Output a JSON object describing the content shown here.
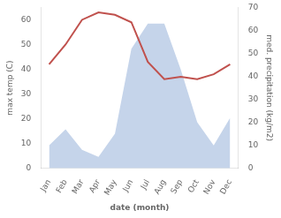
{
  "chart_data": {
    "type": "line",
    "categories": [
      "Jan",
      "Feb",
      "Mar",
      "Apr",
      "May",
      "Jun",
      "Jul",
      "Aug",
      "Sep",
      "Oct",
      "Nov",
      "Dec"
    ],
    "xlabel": "date (month)",
    "ylabel": "max temp (C)",
    "y2label": "med. precipitation (kg/m2)",
    "series": [
      {
        "type": "area",
        "axis": "y2",
        "color": "#c5d4ea",
        "values": [
          10,
          17,
          8,
          5,
          15,
          52,
          63,
          63,
          43,
          20,
          10,
          22
        ]
      },
      {
        "type": "line",
        "color": "#c0514d",
        "values": [
          42,
          50,
          60,
          63,
          62,
          59,
          43,
          36,
          37,
          36,
          38,
          42
        ]
      }
    ],
    "ylim": [
      0,
      65
    ],
    "yticks": [
      0,
      10,
      20,
      30,
      40,
      50,
      60
    ],
    "y2lim": [
      0,
      70
    ],
    "y2ticks": [
      0,
      10,
      20,
      30,
      40,
      50,
      60,
      70
    ],
    "grid": false
  }
}
